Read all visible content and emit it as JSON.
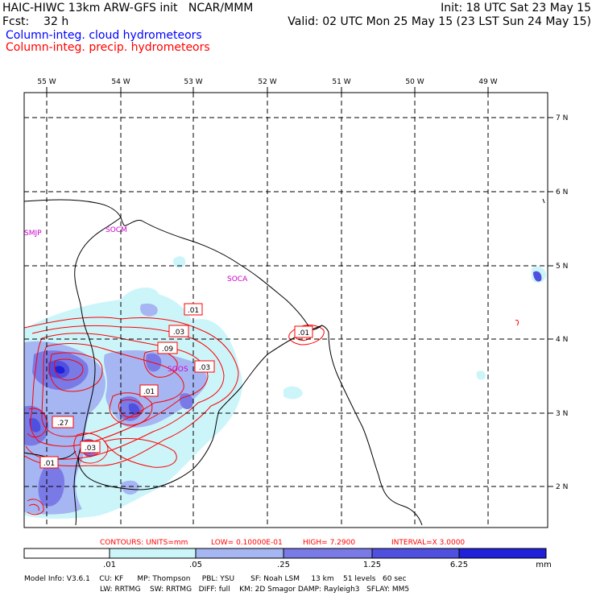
{
  "header": {
    "line1_left": "HAIC-HIWC 13km ARW-GFS init   NCAR/MMM",
    "line1_right": "Init: 18 UTC Sat 23 May 15",
    "line2_left": "Fcst:    32 h",
    "line2_right": "Valid: 02 UTC Mon 25 May 15 (23 LST Sun 24 May 15)",
    "field1": "Column-integ. cloud hydrometeors",
    "field2": "Column-integ. precip. hydrometeors"
  },
  "colors": {
    "field1": "#0000ff",
    "field2": "#ff0000",
    "coast": "#000000",
    "station": "#cc00cc",
    "shade1": "#ccf5fa",
    "shade2": "#a6b6f2",
    "shade3": "#7a7ae6",
    "shade4": "#5050e0",
    "shade5": "#2020d8"
  },
  "longitude_labels": [
    "55 W",
    "54 W",
    "53 W",
    "52 W",
    "51 W",
    "50 W",
    "49 W"
  ],
  "latitude_labels": [
    "7 N",
    "6 N",
    "5 N",
    "4 N",
    "3 N",
    "2 N"
  ],
  "stations": [
    "SMJP",
    "SOCM",
    "SOCA",
    "SOOS"
  ],
  "contour_labels": [
    ".01",
    ".03",
    ".09",
    ".03",
    ".01",
    ".27",
    ".03",
    ".01",
    ".01"
  ],
  "contour_info": {
    "units": "CONTOURS:  UNITS=mm",
    "low": "LOW= 0.10000E-01",
    "high": "HIGH=  7.2900",
    "interval": "INTERVAL=X  3.0000"
  },
  "colorbar": {
    "ticks": [
      ".01",
      ".05",
      ".25",
      "1.25",
      "6.25"
    ],
    "unit": "mm"
  },
  "footer": {
    "line1": "Model Info: V3.6.1    CU: KF      MP: Thompson     PBL: YSU       SF: Noah LSM     13 km    51 levels   60 sec",
    "line2": "LW: RRTMG    SW: RRTMG   DIFF: full    KM: 2D Smagor DAMP: Rayleigh3   SFLAY: MM5"
  }
}
